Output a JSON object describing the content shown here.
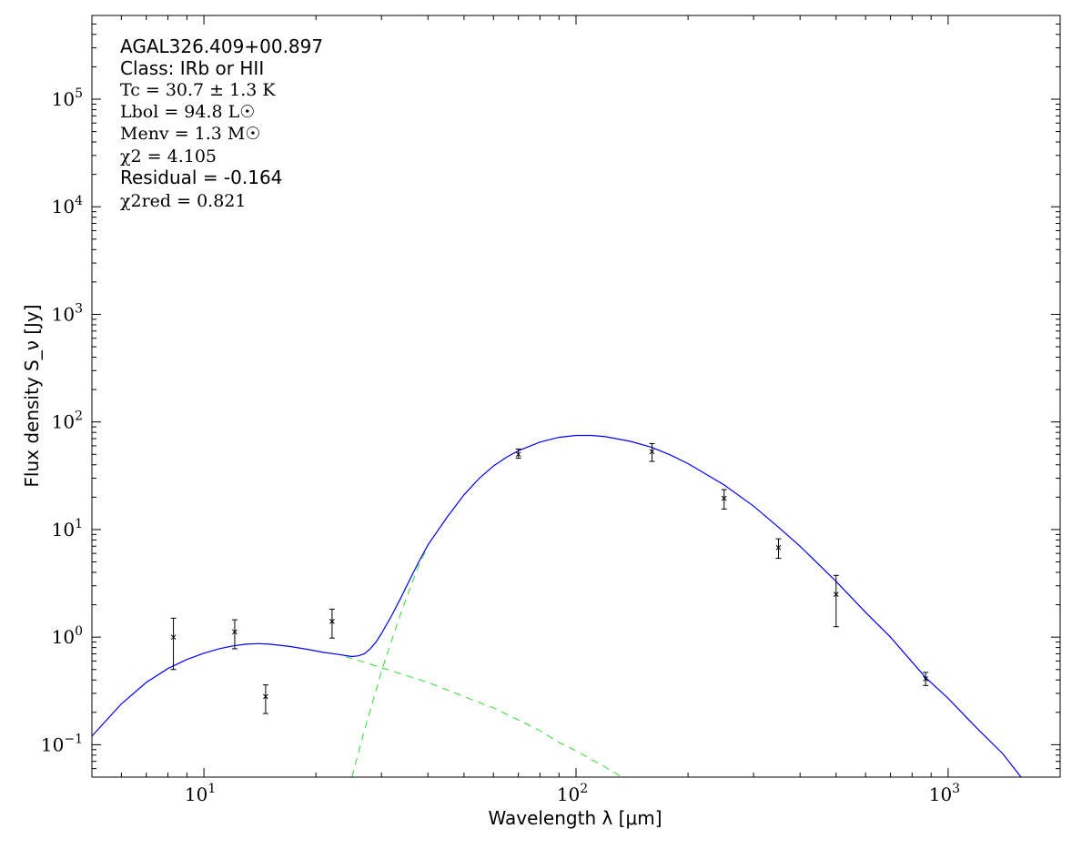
{
  "chart_data": {
    "type": "scatter",
    "xscale": "log",
    "yscale": "log",
    "xlim": [
      5,
      2000
    ],
    "ylim": [
      0.05,
      600000
    ],
    "xlabel": "Wavelength λ [μm]",
    "ylabel": "Flux density S_ν [Jy]",
    "x_ticks": [
      {
        "base": "10",
        "exp": "1",
        "value": 10
      },
      {
        "base": "10",
        "exp": "2",
        "value": 100
      },
      {
        "base": "10",
        "exp": "3",
        "value": 1000
      }
    ],
    "y_ticks": [
      {
        "base": "10",
        "exp": "−1",
        "value": 0.1
      },
      {
        "base": "10",
        "exp": "0",
        "value": 1
      },
      {
        "base": "10",
        "exp": "1",
        "value": 10
      },
      {
        "base": "10",
        "exp": "2",
        "value": 100
      },
      {
        "base": "10",
        "exp": "3",
        "value": 1000
      },
      {
        "base": "10",
        "exp": "4",
        "value": 10000
      },
      {
        "base": "10",
        "exp": "5",
        "value": 100000
      }
    ],
    "annotations": [
      {
        "text": "AGAL326.409+00.897",
        "style": "sans"
      },
      {
        "text": "Class: IRb or HII",
        "style": "sans"
      },
      {
        "text": "Tc = 30.7 ± 1.3 K",
        "style": "serif"
      },
      {
        "text": "Lbol = 94.8 L☉",
        "style": "serif"
      },
      {
        "text": "Menv = 1.3 M☉",
        "style": "serif"
      },
      {
        "text": "χ2 = 4.105",
        "style": "serif"
      },
      {
        "text": "Residual = -0.164",
        "style": "sans"
      },
      {
        "text": "χ2red = 0.821",
        "style": "serif"
      }
    ],
    "points": [
      {
        "x": 8.28,
        "y": 1.0,
        "yerr_lo": 0.5,
        "yerr_hi": 1.5
      },
      {
        "x": 12.1,
        "y": 1.12,
        "yerr_lo": 0.78,
        "yerr_hi": 1.45
      },
      {
        "x": 14.65,
        "y": 0.28,
        "yerr_lo": 0.195,
        "yerr_hi": 0.36
      },
      {
        "x": 22.1,
        "y": 1.4,
        "yerr_lo": 0.98,
        "yerr_hi": 1.82
      },
      {
        "x": 70,
        "y": 50,
        "yerr_lo": 46,
        "yerr_hi": 56
      },
      {
        "x": 160,
        "y": 53,
        "yerr_lo": 43,
        "yerr_hi": 63
      },
      {
        "x": 250,
        "y": 19.5,
        "yerr_lo": 15.5,
        "yerr_hi": 23.5
      },
      {
        "x": 350,
        "y": 6.8,
        "yerr_lo": 5.4,
        "yerr_hi": 8.2
      },
      {
        "x": 500,
        "y": 2.5,
        "yerr_lo": 1.25,
        "yerr_hi": 3.75
      },
      {
        "x": 870,
        "y": 0.41,
        "yerr_lo": 0.355,
        "yerr_hi": 0.47
      }
    ],
    "series": [
      {
        "style": "solid",
        "color": "#0000ff",
        "points": [
          [
            5,
            0.12
          ],
          [
            6,
            0.24
          ],
          [
            7,
            0.38
          ],
          [
            8,
            0.51
          ],
          [
            9,
            0.62
          ],
          [
            10,
            0.71
          ],
          [
            11,
            0.78
          ],
          [
            12,
            0.83
          ],
          [
            13,
            0.86
          ],
          [
            14,
            0.87
          ],
          [
            15,
            0.86
          ],
          [
            17,
            0.82
          ],
          [
            19,
            0.77
          ],
          [
            21,
            0.72
          ],
          [
            23,
            0.69
          ],
          [
            25,
            0.66
          ],
          [
            26,
            0.67
          ],
          [
            27,
            0.7
          ],
          [
            28,
            0.78
          ],
          [
            29,
            0.9
          ],
          [
            30,
            1.08
          ],
          [
            32,
            1.6
          ],
          [
            34,
            2.4
          ],
          [
            36,
            3.6
          ],
          [
            38,
            5.2
          ],
          [
            40,
            7.2
          ],
          [
            45,
            13
          ],
          [
            50,
            21
          ],
          [
            55,
            30
          ],
          [
            60,
            39
          ],
          [
            65,
            47
          ],
          [
            70,
            54
          ],
          [
            80,
            65
          ],
          [
            90,
            72
          ],
          [
            100,
            75
          ],
          [
            110,
            75
          ],
          [
            120,
            73
          ],
          [
            140,
            66
          ],
          [
            160,
            58
          ],
          [
            180,
            49
          ],
          [
            200,
            41
          ],
          [
            250,
            26
          ],
          [
            300,
            16.5
          ],
          [
            350,
            10.5
          ],
          [
            400,
            7.0
          ],
          [
            500,
            3.3
          ],
          [
            600,
            1.7
          ],
          [
            700,
            1.0
          ],
          [
            870,
            0.42
          ],
          [
            1000,
            0.27
          ],
          [
            1200,
            0.14
          ],
          [
            1400,
            0.083
          ],
          [
            1570,
            0.05
          ]
        ]
      },
      {
        "style": "dashed",
        "color": "#44dd44",
        "points": [
          [
            25,
            0.05
          ],
          [
            26,
            0.084
          ],
          [
            27,
            0.135
          ],
          [
            28,
            0.21
          ],
          [
            29,
            0.32
          ],
          [
            30,
            0.48
          ],
          [
            32,
            0.95
          ],
          [
            34,
            1.75
          ],
          [
            36,
            3.0
          ],
          [
            38,
            4.9
          ],
          [
            40,
            6.9
          ]
        ]
      },
      {
        "style": "dashed",
        "color": "#44dd44",
        "points": [
          [
            24,
            0.66
          ],
          [
            30,
            0.52
          ],
          [
            40,
            0.38
          ],
          [
            50,
            0.28
          ],
          [
            60,
            0.22
          ],
          [
            70,
            0.17
          ],
          [
            80,
            0.135
          ],
          [
            90,
            0.105
          ],
          [
            100,
            0.088
          ],
          [
            110,
            0.073
          ],
          [
            125,
            0.057
          ],
          [
            133,
            0.05
          ]
        ]
      }
    ]
  }
}
